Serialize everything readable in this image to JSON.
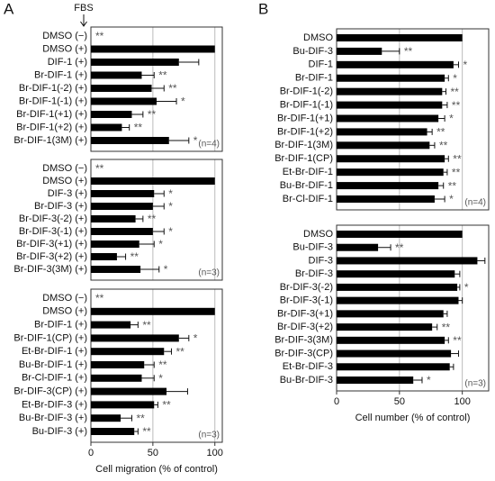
{
  "chart_data": [
    {
      "type": "bar",
      "orientation": "horizontal",
      "panel": "A",
      "header_annotation": "FBS",
      "color": "#000000",
      "grid": true,
      "categories": [
        "DMSO (−)",
        "DMSO (+)",
        "DIF-1 (+)",
        "Br-DIF-1 (+)",
        "Br-DIF-1(-2) (+)",
        "Br-DIF-1(-1) (+)",
        "Br-DIF-1(+1) (+)",
        "Br-DIF-1(+2) (+)",
        "Br-DIF-1(3M) (+)"
      ],
      "values": [
        0,
        100,
        71,
        41,
        49,
        53,
        33,
        25,
        63
      ],
      "errors": [
        0,
        0,
        16,
        10,
        10,
        16,
        9,
        6,
        16
      ],
      "stars": [
        "**",
        null,
        null,
        "**",
        "**",
        "*",
        "**",
        "**",
        "*"
      ],
      "note": "(n=4)",
      "xlim": [
        0,
        106
      ],
      "xticks": [
        0,
        50,
        100
      ]
    },
    {
      "type": "bar",
      "orientation": "horizontal",
      "color": "#000000",
      "grid": true,
      "categories": [
        "DMSO (−)",
        "DMSO (+)",
        "DIF-3 (+)",
        "Br-DIF-3 (+)",
        "Br-DIF-3(-2) (+)",
        "Br-DIF-3(-1) (+)",
        "Br-DIF-3(+1) (+)",
        "Br-DIF-3(+2) (+)",
        "Br-DIF-3(3M) (+)"
      ],
      "values": [
        0,
        100,
        51,
        50,
        36,
        50,
        39,
        21,
        40
      ],
      "errors": [
        0,
        0,
        8,
        9,
        6,
        9,
        12,
        7,
        15
      ],
      "stars": [
        "**",
        null,
        "*",
        "*",
        "**",
        "*",
        "*",
        "**",
        "*"
      ],
      "note": "(n=3)",
      "xlim": [
        0,
        106
      ],
      "xticks": [
        0,
        50,
        100
      ]
    },
    {
      "type": "bar",
      "orientation": "horizontal",
      "color": "#000000",
      "grid": true,
      "categories": [
        "DMSO (−)",
        "DMSO (+)",
        "Br-DIF-1 (+)",
        "Br-DIF-1(CP) (+)",
        "Et-Br-DIF-1 (+)",
        "Bu-Br-DIF-1 (+)",
        "Br-Cl-DIF-1 (+)",
        "Br-DIF-3(CP) (+)",
        "Et-Br-DIF-3 (+)",
        "Bu-Br-DIF-3 (+)",
        "Bu-DIF-3 (+)"
      ],
      "values": [
        0,
        100,
        32,
        71,
        59,
        43,
        41,
        61,
        51,
        24,
        35
      ],
      "errors": [
        0,
        0,
        6,
        8,
        6,
        8,
        10,
        17,
        3,
        9,
        3
      ],
      "stars": [
        "**",
        null,
        "**",
        "*",
        "**",
        "**",
        "*",
        null,
        "**",
        "**",
        "**"
      ],
      "note": "(n=3)",
      "xlim": [
        0,
        106
      ],
      "xticks": [
        0,
        50,
        100
      ],
      "xlabel": "Cell migration (% of control)"
    },
    {
      "type": "bar",
      "orientation": "horizontal",
      "panel": "B",
      "color": "#000000",
      "grid": true,
      "categories": [
        "DMSO",
        "Bu-DIF-3",
        "DIF-1",
        "Br-DIF-1",
        "Br-DIF-1(-2)",
        "Br-DIF-1(-1)",
        "Br-DIF-1(+1)",
        "Br-DIF-1(+2)",
        "Br-DIF-1(3M)",
        "Br-DIF-1(CP)",
        "Et-Br-DIF-1",
        "Bu-Br-DIF-1",
        "Br-Cl-DIF-1"
      ],
      "values": [
        100,
        36,
        93,
        86,
        84,
        84,
        81,
        72,
        74,
        86,
        85,
        81,
        78
      ],
      "errors": [
        0,
        14,
        4,
        3,
        3,
        4,
        5,
        4,
        4,
        3,
        3,
        4,
        8
      ],
      "stars": [
        null,
        "**",
        "*",
        "*",
        "**",
        "**",
        "*",
        "**",
        "**",
        "**",
        "**",
        "**",
        "*"
      ],
      "note": "(n=4)",
      "xlim": [
        0,
        121
      ],
      "xticks": [
        0,
        50,
        100
      ]
    },
    {
      "type": "bar",
      "orientation": "horizontal",
      "color": "#000000",
      "grid": true,
      "categories": [
        "DMSO",
        "Bu-DIF-3",
        "DIF-3",
        "Br-DIF-3",
        "Br-DIF-3(-2)",
        "Br-DIF-3(-1)",
        "Br-DIF-3(+1)",
        "Br-DIF-3(+2)",
        "Br-DIF-3(3M)",
        "Br-DIF-3(CP)",
        "Et-Br-DIF-3",
        "Bu-Br-DIF-3"
      ],
      "values": [
        100,
        33,
        112,
        94,
        96,
        97,
        85,
        76,
        86,
        91,
        90,
        61
      ],
      "errors": [
        0,
        10,
        6,
        4,
        2,
        3,
        3,
        4,
        3,
        6,
        3,
        7
      ],
      "stars": [
        null,
        "**",
        null,
        null,
        "*",
        null,
        null,
        "**",
        "**",
        null,
        null,
        "*"
      ],
      "note": "(n=3)",
      "xlim": [
        0,
        121
      ],
      "xticks": [
        0,
        50,
        100
      ],
      "xlabel": "Cell number (% of control)"
    }
  ]
}
